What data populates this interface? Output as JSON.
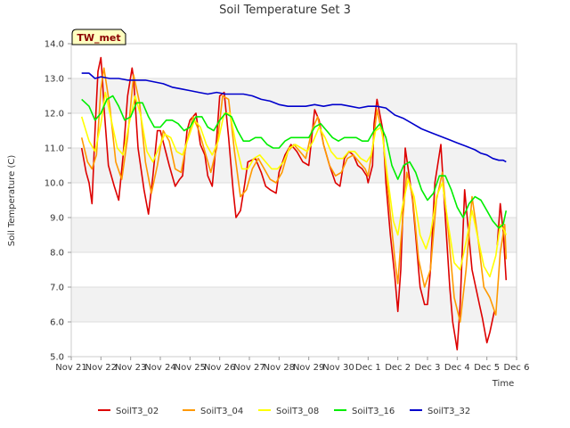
{
  "chart_data": {
    "type": "line",
    "title": "Soil Temperature Set 3",
    "xlabel": "Time",
    "ylabel": "Soil Temperature (C)",
    "badge": "TW_met",
    "xlim": [
      0,
      15
    ],
    "ylim": [
      5.0,
      14.0
    ],
    "x_ticks": [
      0,
      1,
      2,
      3,
      4,
      5,
      6,
      7,
      8,
      9,
      10,
      11,
      12,
      13,
      14,
      15
    ],
    "x_tick_labels": [
      "Nov 21",
      "Nov 22",
      "Nov 23",
      "Nov 24",
      "Nov 25",
      "Nov 26",
      "Nov 27",
      "Nov 28",
      "Nov 29",
      "Nov 30",
      "Dec 1",
      "Dec 2",
      "Dec 3",
      "Dec 4",
      "Dec 5",
      "Dec 6"
    ],
    "y_ticks": [
      5.0,
      6.0,
      7.0,
      8.0,
      9.0,
      10.0,
      11.0,
      12.0,
      13.0,
      14.0
    ],
    "y_tick_labels": [
      "5.0",
      "6.0",
      "7.0",
      "8.0",
      "9.0",
      "10.0",
      "11.0",
      "12.0",
      "13.0",
      "14.0"
    ],
    "legend_position": "bottom",
    "series": [
      {
        "name": "SoilT3_02",
        "color": "#dd0000",
        "x": [
          0.35,
          0.5,
          0.6,
          0.7,
          0.8,
          0.9,
          1.0,
          1.05,
          1.1,
          1.25,
          1.45,
          1.6,
          1.75,
          1.9,
          2.05,
          2.1,
          2.25,
          2.45,
          2.6,
          2.75,
          2.9,
          3.0,
          3.15,
          3.3,
          3.5,
          3.65,
          3.75,
          3.9,
          4.0,
          4.2,
          4.35,
          4.5,
          4.6,
          4.75,
          4.9,
          5.0,
          5.15,
          5.3,
          5.45,
          5.55,
          5.7,
          5.85,
          5.95,
          6.2,
          6.4,
          6.55,
          6.7,
          6.9,
          7.0,
          7.2,
          7.4,
          7.6,
          7.8,
          8.0,
          8.2,
          8.35,
          8.5,
          8.7,
          8.9,
          9.05,
          9.2,
          9.35,
          9.5,
          9.65,
          9.8,
          9.95,
          10.0,
          10.15,
          10.2,
          10.3,
          10.5,
          10.6,
          10.75,
          10.9,
          11.0,
          11.1,
          11.25,
          11.5,
          11.75,
          11.9,
          12.0,
          12.1,
          12.25,
          12.45,
          12.6,
          12.75,
          12.85,
          13.0,
          13.1,
          13.25,
          13.5,
          13.75,
          13.85,
          14.0,
          14.1,
          14.25
        ],
        "y": [
          11.0,
          10.3,
          10.0,
          9.4,
          11.5,
          13.2,
          13.6,
          13.0,
          12.2,
          10.5,
          9.9,
          9.5,
          10.8,
          12.5,
          13.3,
          13.0,
          11.0,
          9.8,
          9.1,
          10.2,
          11.5,
          11.5,
          11.0,
          10.5,
          9.9,
          10.1,
          10.2,
          11.5,
          11.8,
          12.0,
          11.1,
          10.8,
          10.2,
          9.9,
          11.3,
          12.5,
          12.6,
          11.3,
          9.8,
          9.0,
          9.2,
          10.0,
          10.6,
          10.7,
          10.3,
          9.9,
          9.8,
          9.7,
          10.3,
          10.8,
          11.1,
          10.9,
          10.6,
          10.5,
          12.1,
          11.8,
          11.1,
          10.5,
          10.0,
          9.9,
          10.7,
          10.9,
          10.8,
          10.5,
          10.4,
          10.2,
          10.0,
          10.5,
          11.7,
          12.4,
          11.5,
          10.0,
          8.5,
          7.3,
          6.3,
          7.5,
          11.0,
          9.5,
          7.0,
          6.5,
          6.5,
          7.5,
          10.0,
          11.1,
          9.0,
          7.0,
          6.0,
          5.2,
          6.5,
          9.8,
          7.5,
          6.5,
          6.1,
          5.4,
          5.7,
          6.3
        ],
        "x2": [
          14.35,
          14.45,
          14.55,
          14.65
        ],
        "y2": [
          8.2,
          9.4,
          8.6,
          7.2
        ]
      },
      {
        "name": "SoilT3_04",
        "color": "#ff9900",
        "x": [
          0.35,
          0.55,
          0.7,
          0.85,
          1.0,
          1.1,
          1.3,
          1.5,
          1.7,
          1.9,
          2.1,
          2.3,
          2.5,
          2.7,
          2.9,
          3.1,
          3.3,
          3.5,
          3.7,
          3.9,
          4.1,
          4.3,
          4.5,
          4.7,
          4.9,
          5.1,
          5.3,
          5.5,
          5.7,
          5.9,
          6.1,
          6.3,
          6.5,
          6.7,
          6.9,
          7.1,
          7.3,
          7.5,
          7.7,
          7.9,
          8.1,
          8.3,
          8.5,
          8.7,
          8.9,
          9.1,
          9.3,
          9.5,
          9.7,
          9.9,
          10.0,
          10.15,
          10.3,
          10.5,
          10.7,
          10.9,
          11.0,
          11.1,
          11.3,
          11.5,
          11.7,
          11.9,
          12.1,
          12.3,
          12.5,
          12.7,
          12.9,
          13.1,
          13.3,
          13.5,
          13.7,
          13.9,
          14.1,
          14.3,
          14.45,
          14.6,
          14.65
        ],
        "y": [
          11.3,
          10.6,
          10.4,
          10.8,
          12.7,
          13.3,
          12.2,
          10.6,
          10.1,
          11.3,
          13.1,
          12.3,
          10.6,
          9.7,
          10.5,
          11.5,
          11.2,
          10.4,
          10.3,
          11.2,
          11.9,
          11.5,
          10.9,
          10.3,
          11.0,
          12.5,
          12.4,
          10.9,
          9.6,
          9.8,
          10.4,
          10.7,
          10.4,
          10.1,
          10.0,
          10.3,
          10.9,
          11.1,
          10.9,
          10.7,
          11.5,
          11.9,
          11.1,
          10.5,
          10.2,
          10.3,
          10.7,
          10.8,
          10.6,
          10.4,
          10.2,
          11.0,
          12.1,
          11.3,
          9.5,
          7.8,
          7.1,
          8.3,
          10.3,
          9.6,
          7.8,
          7.0,
          7.5,
          9.5,
          10.3,
          8.6,
          6.7,
          6.0,
          7.5,
          9.6,
          8.4,
          7.0,
          6.7,
          6.2,
          8.0,
          8.8,
          7.8
        ]
      },
      {
        "name": "SoilT3_08",
        "color": "#ffff00",
        "x": [
          0.35,
          0.6,
          0.8,
          1.0,
          1.15,
          1.35,
          1.55,
          1.75,
          1.95,
          2.15,
          2.35,
          2.55,
          2.75,
          2.95,
          3.15,
          3.35,
          3.55,
          3.75,
          3.95,
          4.15,
          4.35,
          4.55,
          4.75,
          4.95,
          5.15,
          5.35,
          5.55,
          5.75,
          5.95,
          6.15,
          6.35,
          6.55,
          6.75,
          6.95,
          7.15,
          7.35,
          7.55,
          7.75,
          7.95,
          8.15,
          8.35,
          8.55,
          8.75,
          8.95,
          9.15,
          9.35,
          9.55,
          9.75,
          9.95,
          10.1,
          10.25,
          10.45,
          10.65,
          10.85,
          11.0,
          11.15,
          11.35,
          11.55,
          11.75,
          11.95,
          12.1,
          12.3,
          12.5,
          12.7,
          12.9,
          13.1,
          13.3,
          13.5,
          13.7,
          13.9,
          14.1,
          14.3,
          14.45,
          14.6,
          14.65
        ],
        "y": [
          11.9,
          11.2,
          10.9,
          11.7,
          12.6,
          11.8,
          11.0,
          10.8,
          11.7,
          12.5,
          11.9,
          10.9,
          10.6,
          11.0,
          11.4,
          11.3,
          10.9,
          10.8,
          11.3,
          11.8,
          11.6,
          11.1,
          10.8,
          11.2,
          12.0,
          12.0,
          11.1,
          10.4,
          10.4,
          10.7,
          10.8,
          10.6,
          10.4,
          10.4,
          10.6,
          11.0,
          11.1,
          11.0,
          10.9,
          11.2,
          11.6,
          11.3,
          10.9,
          10.7,
          10.7,
          10.9,
          10.9,
          10.7,
          10.6,
          10.8,
          11.5,
          11.6,
          10.2,
          8.9,
          8.5,
          9.3,
          10.1,
          9.6,
          8.5,
          8.1,
          8.5,
          9.6,
          10.0,
          8.8,
          7.7,
          7.5,
          8.3,
          9.2,
          8.4,
          7.6,
          7.3,
          7.9,
          8.8,
          8.6,
          8.5
        ]
      },
      {
        "name": "SoilT3_16",
        "color": "#00ee00",
        "x": [
          0.35,
          0.6,
          0.8,
          1.0,
          1.2,
          1.4,
          1.6,
          1.8,
          2.0,
          2.2,
          2.4,
          2.6,
          2.8,
          3.0,
          3.2,
          3.4,
          3.6,
          3.8,
          4.0,
          4.2,
          4.4,
          4.6,
          4.8,
          5.0,
          5.2,
          5.4,
          5.6,
          5.8,
          6.0,
          6.2,
          6.4,
          6.6,
          6.8,
          7.0,
          7.2,
          7.4,
          7.6,
          7.8,
          8.0,
          8.2,
          8.4,
          8.6,
          8.8,
          9.0,
          9.2,
          9.4,
          9.6,
          9.8,
          10.0,
          10.2,
          10.4,
          10.6,
          10.8,
          11.0,
          11.2,
          11.4,
          11.6,
          11.8,
          12.0,
          12.2,
          12.4,
          12.6,
          12.8,
          13.0,
          13.2,
          13.4,
          13.6,
          13.8,
          14.0,
          14.2,
          14.4,
          14.55,
          14.65
        ],
        "y": [
          12.4,
          12.2,
          11.8,
          12.0,
          12.4,
          12.5,
          12.2,
          11.8,
          11.9,
          12.3,
          12.3,
          11.9,
          11.6,
          11.6,
          11.8,
          11.8,
          11.7,
          11.5,
          11.6,
          11.9,
          11.9,
          11.6,
          11.5,
          11.8,
          12.0,
          11.9,
          11.5,
          11.2,
          11.2,
          11.3,
          11.3,
          11.1,
          11.0,
          11.0,
          11.2,
          11.3,
          11.3,
          11.3,
          11.3,
          11.6,
          11.7,
          11.5,
          11.3,
          11.2,
          11.3,
          11.3,
          11.3,
          11.2,
          11.2,
          11.5,
          11.7,
          11.3,
          10.5,
          10.1,
          10.5,
          10.6,
          10.3,
          9.8,
          9.5,
          9.7,
          10.2,
          10.2,
          9.8,
          9.3,
          9.0,
          9.4,
          9.6,
          9.5,
          9.2,
          8.9,
          8.7,
          8.8,
          9.2
        ]
      },
      {
        "name": "SoilT3_32",
        "color": "#0000cc",
        "x": [
          0.35,
          0.6,
          0.8,
          1.0,
          1.3,
          1.6,
          1.9,
          2.2,
          2.5,
          2.8,
          3.1,
          3.4,
          3.7,
          4.0,
          4.3,
          4.6,
          4.9,
          5.2,
          5.5,
          5.8,
          6.1,
          6.4,
          6.7,
          7.0,
          7.3,
          7.6,
          7.9,
          8.2,
          8.5,
          8.8,
          9.1,
          9.4,
          9.7,
          10.0,
          10.3,
          10.6,
          10.9,
          11.2,
          11.5,
          11.8,
          12.1,
          12.4,
          12.7,
          13.0,
          13.3,
          13.6,
          13.8,
          14.0,
          14.2,
          14.4,
          14.55,
          14.65
        ],
        "y": [
          13.15,
          13.15,
          13.0,
          13.05,
          13.0,
          13.0,
          12.95,
          12.95,
          12.95,
          12.9,
          12.85,
          12.75,
          12.7,
          12.65,
          12.6,
          12.55,
          12.6,
          12.55,
          12.55,
          12.55,
          12.5,
          12.4,
          12.35,
          12.25,
          12.2,
          12.2,
          12.2,
          12.25,
          12.2,
          12.25,
          12.25,
          12.2,
          12.15,
          12.2,
          12.2,
          12.15,
          11.95,
          11.85,
          11.7,
          11.55,
          11.45,
          11.35,
          11.25,
          11.15,
          11.05,
          10.95,
          10.85,
          10.8,
          10.7,
          10.65,
          10.65,
          10.6
        ]
      }
    ]
  }
}
